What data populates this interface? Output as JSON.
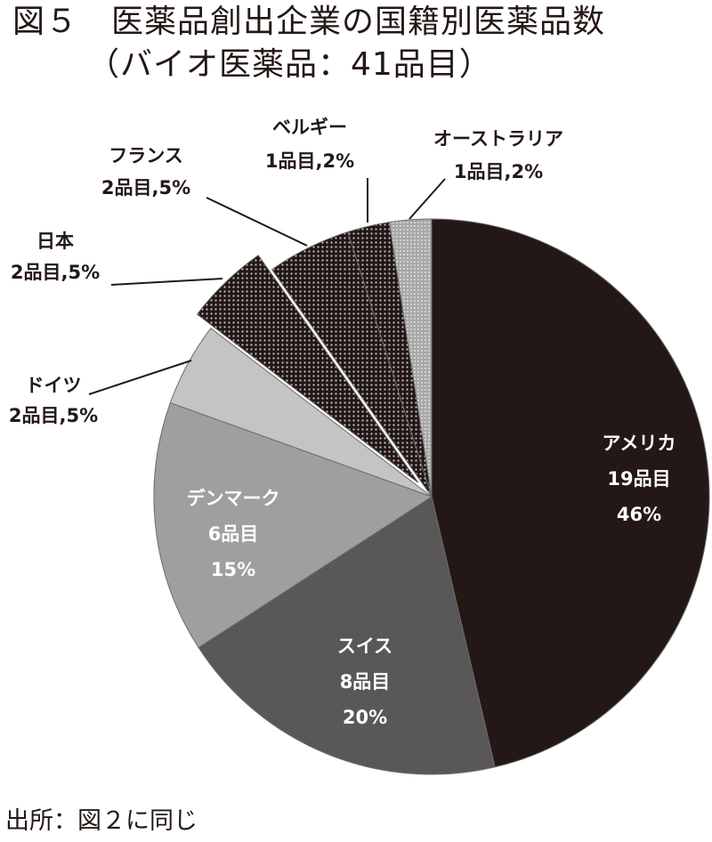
{
  "title": "図５　医薬品創出企業の国籍別医薬品数",
  "subtitle": "（バイオ医薬品：41品目）",
  "source": "出所：図２に同じ",
  "chart_data": {
    "type": "pie",
    "title": "医薬品創出企業の国籍別医薬品数（バイオ医薬品：41品目）",
    "total": 41,
    "unit": "品目",
    "start_angle_deg": 0,
    "direction": "clockwise",
    "slices": [
      {
        "name": "アメリカ",
        "count": 19,
        "percent": 46,
        "count_label": "19品目",
        "percent_label": "46%",
        "fill": "#231815",
        "pattern": "none",
        "label_color": "#ffffff",
        "label_inside": true,
        "exploded": false
      },
      {
        "name": "スイス",
        "count": 8,
        "percent": 20,
        "count_label": "8品目",
        "percent_label": "20%",
        "fill": "#595757",
        "pattern": "none",
        "label_color": "#ffffff",
        "label_inside": true,
        "exploded": false
      },
      {
        "name": "デンマーク",
        "count": 6,
        "percent": 15,
        "count_label": "6品目",
        "percent_label": "15%",
        "fill": "#9f9f9f",
        "pattern": "none",
        "label_color": "#ffffff",
        "label_inside": true,
        "exploded": false
      },
      {
        "name": "ドイツ",
        "count": 2,
        "percent": 5,
        "count_label": "2品目,5%",
        "percent_label": "5%",
        "fill": "#c4c4c4",
        "pattern": "none",
        "label_color": "#231815",
        "label_inside": false,
        "exploded": false
      },
      {
        "name": "日本",
        "count": 2,
        "percent": 5,
        "count_label": "2品目,5%",
        "percent_label": "5%",
        "fill": "#9a9a9a",
        "pattern": "dots",
        "label_color": "#231815",
        "label_inside": false,
        "exploded": true
      },
      {
        "name": "フランス",
        "count": 2,
        "percent": 5,
        "count_label": "2品目,5%",
        "percent_label": "5%",
        "fill": "#d6d6d6",
        "pattern": "dots",
        "label_color": "#231815",
        "label_inside": false,
        "exploded": false
      },
      {
        "name": "ベルギー",
        "count": 1,
        "percent": 2,
        "count_label": "1品目,2%",
        "percent_label": "2%",
        "fill": "#e8e8e8",
        "pattern": "dots",
        "label_color": "#231815",
        "label_inside": false,
        "exploded": false
      },
      {
        "name": "オーストラリア",
        "count": 1,
        "percent": 2,
        "count_label": "1品目,2%",
        "percent_label": "2%",
        "fill": "#b0b0b0",
        "pattern": "fine-dots",
        "label_color": "#231815",
        "label_inside": false,
        "exploded": false
      }
    ],
    "legend": "none (data labels with leader lines)"
  }
}
